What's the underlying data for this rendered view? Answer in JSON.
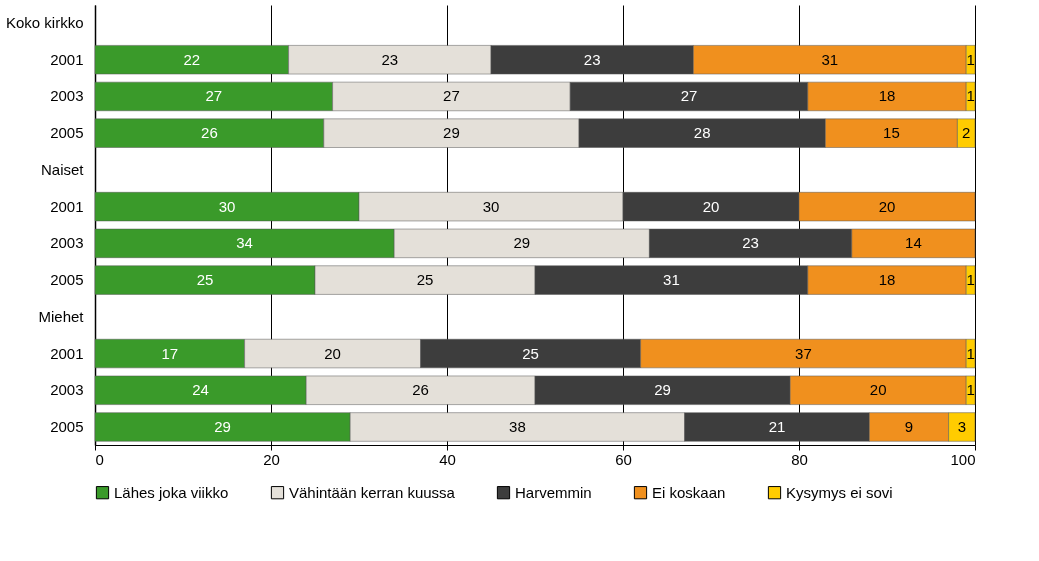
{
  "chart_data": {
    "type": "bar",
    "orientation": "horizontal",
    "stacked": true,
    "data_labels": true,
    "legend": "bottom",
    "grid": "x",
    "categories": [
      "Koko kirkko",
      "2001",
      "2003",
      "2005",
      "Naiset",
      "2001",
      "2003",
      "2005",
      "Miehet",
      "2001",
      "2003",
      "2005"
    ],
    "xlim": [
      0,
      100
    ],
    "xticks": [
      0,
      20,
      40,
      60,
      80,
      100
    ],
    "series": [
      {
        "name": "Lähes joka viikko",
        "color": "#3a9a2a",
        "values": [
          null,
          22,
          27,
          26,
          null,
          30,
          34,
          25,
          null,
          17,
          24,
          29
        ]
      },
      {
        "name": "Vähintään kerran kuussa",
        "color": "#e4e0d9",
        "values": [
          null,
          23,
          27,
          29,
          null,
          30,
          29,
          25,
          null,
          20,
          26,
          38
        ]
      },
      {
        "name": "Harvemmin",
        "color": "#3d3d3d",
        "values": [
          null,
          23,
          27,
          28,
          null,
          20,
          23,
          31,
          null,
          25,
          29,
          21
        ]
      },
      {
        "name": "Ei koskaan",
        "color": "#f0901e",
        "values": [
          null,
          31,
          18,
          15,
          null,
          20,
          14,
          18,
          null,
          37,
          20,
          9
        ]
      },
      {
        "name": "Kysymys ei sovi",
        "color": "#ffcc00",
        "values": [
          null,
          1,
          1,
          2,
          null,
          null,
          null,
          1,
          null,
          1,
          1,
          3
        ]
      }
    ]
  }
}
